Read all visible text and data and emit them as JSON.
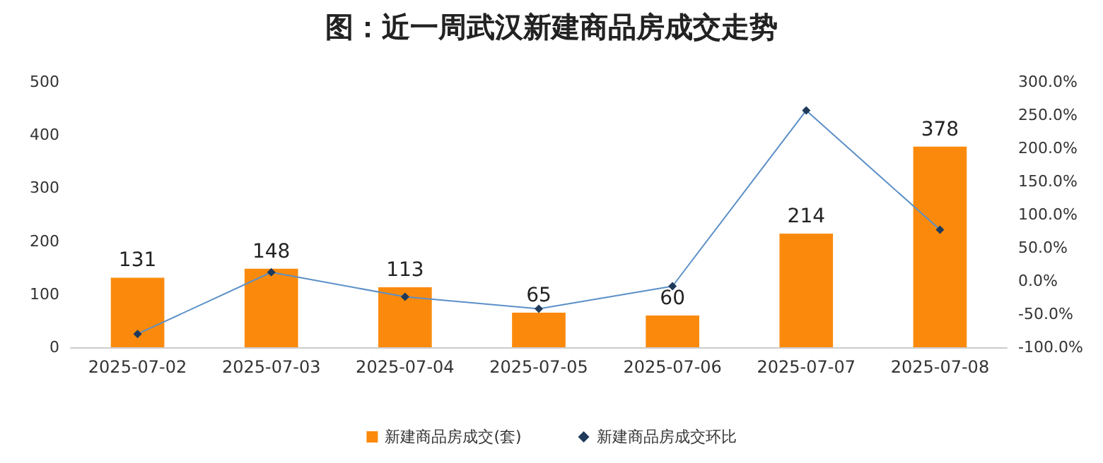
{
  "chart_data": {
    "type": "bar",
    "title": "图：近一周武汉新建商品房成交走势",
    "categories": [
      "2025-07-02",
      "2025-07-03",
      "2025-07-04",
      "2025-07-05",
      "2025-07-06",
      "2025-07-07",
      "2025-07-08"
    ],
    "series": [
      {
        "name": "新建商品房成交(套)",
        "color": "#fb8a0c",
        "values": [
          131,
          148,
          113,
          65,
          60,
          214,
          378
        ],
        "value_labels": [
          "131",
          "148",
          "113",
          "65",
          "60",
          "214",
          "378"
        ]
      },
      {
        "name": "新建商品房成交环比",
        "type": "line",
        "axis": "y2",
        "color": "#5b8fc7",
        "marker": "diamond",
        "values": [
          -80,
          13,
          -24,
          -42,
          -8,
          257,
          77
        ]
      }
    ],
    "ylim": [
      0,
      500
    ],
    "yticks": [
      0,
      100,
      200,
      300,
      400,
      500
    ],
    "y2lim": [
      -100,
      300
    ],
    "y2ticks": [
      {
        "value": -100,
        "label": "-100.0%"
      },
      {
        "value": -50,
        "label": "-50.0%"
      },
      {
        "value": 0,
        "label": "0.0%"
      },
      {
        "value": 50,
        "label": "50.0%"
      },
      {
        "value": 100,
        "label": "100.0%"
      },
      {
        "value": 150,
        "label": "150.0%"
      },
      {
        "value": 200,
        "label": "200.0%"
      },
      {
        "value": 250,
        "label": "250.0%"
      },
      {
        "value": 300,
        "label": "300.0%"
      }
    ],
    "legend": "bottom",
    "grid": false
  }
}
